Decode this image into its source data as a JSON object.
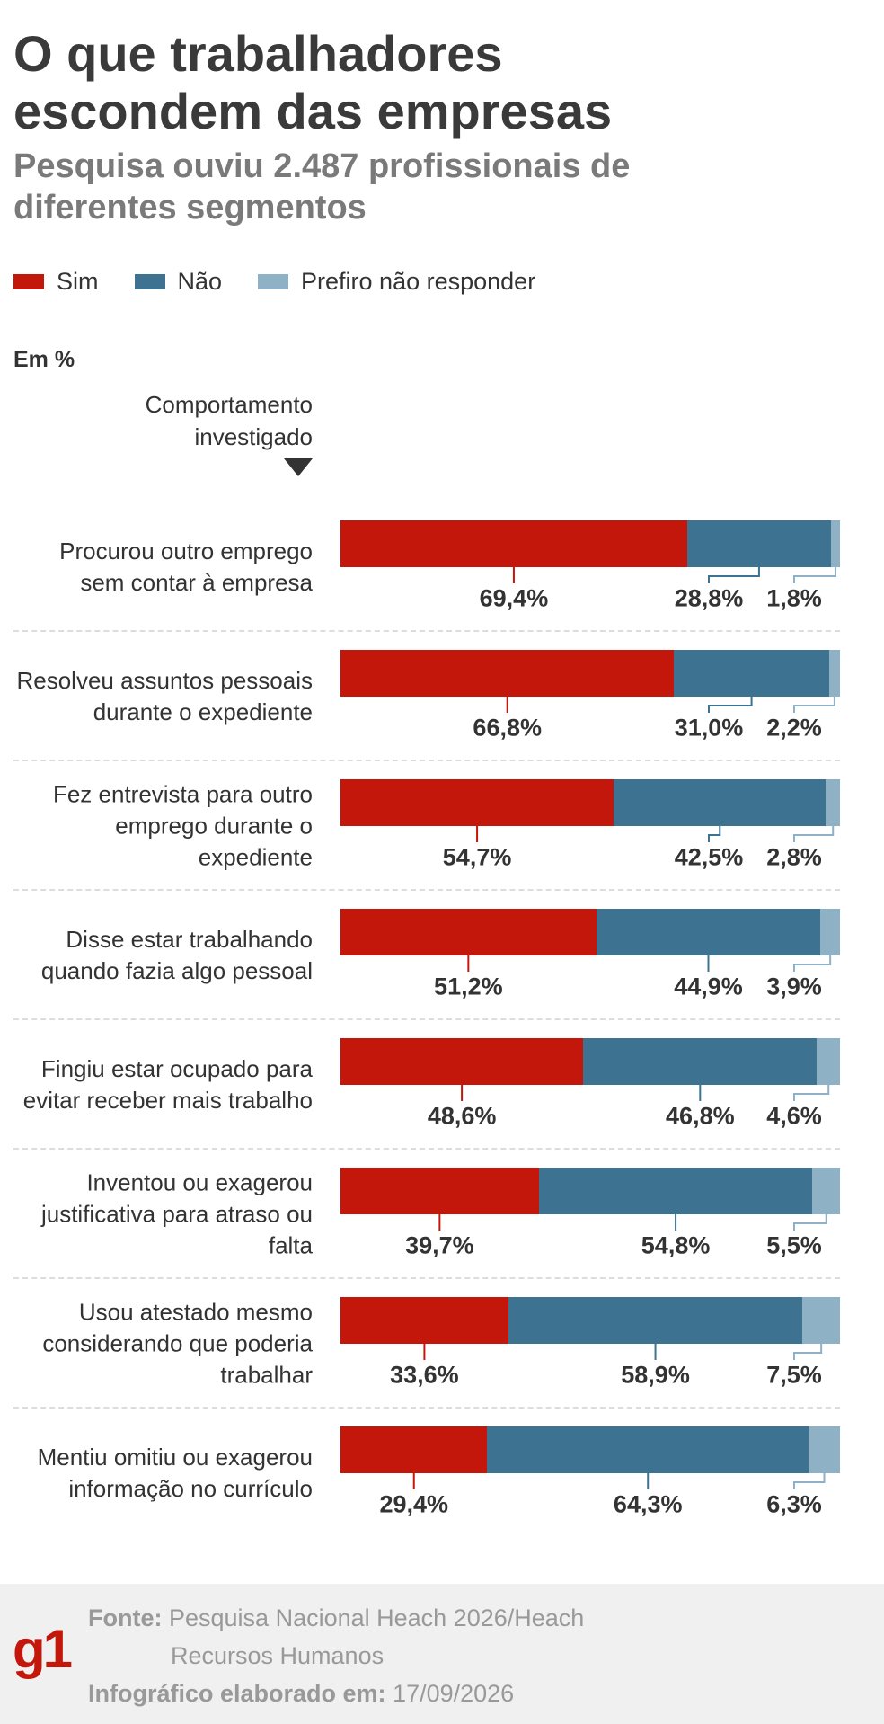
{
  "chart_data": {
    "type": "stacked_bar_horizontal",
    "title": "O que trabalhadores escondem das empresas",
    "subtitle": "Pesquisa ouviu 2.487 profissionais de diferentes segmentos",
    "unit_label": "Em %",
    "category_axis_label": "Comportamento investigado",
    "categories": [
      "Procurou outro emprego sem contar à empresa",
      "Resolveu assuntos pessoais durante o expediente",
      "Fez entrevista para outro emprego durante o expediente",
      "Disse estar trabalhando quando fazia algo pessoal",
      "Fingiu estar ocupado para evitar receber mais trabalho",
      "Inventou ou exagerou justificativa para atraso ou falta",
      "Usou atestado mesmo considerando que poderia trabalhar",
      "Mentiu omitiu ou exagerou informação no currículo"
    ],
    "xlim": [
      0,
      100
    ],
    "series": [
      {
        "name": "Sim",
        "color": "#c4170c",
        "values": [
          69.4,
          66.8,
          54.7,
          51.2,
          48.6,
          39.7,
          33.6,
          29.4
        ],
        "value_labels": [
          "69,4%",
          "66,8%",
          "54,7%",
          "51,2%",
          "48,6%",
          "39,7%",
          "33,6%",
          "29,4%"
        ]
      },
      {
        "name": "Não",
        "color": "#3d7391",
        "values": [
          28.8,
          31.0,
          42.5,
          44.9,
          46.8,
          54.8,
          58.9,
          64.3
        ],
        "value_labels": [
          "28,8%",
          "31,0%",
          "42,5%",
          "44,9%",
          "46,8%",
          "54,8%",
          "58,9%",
          "64,3%"
        ]
      },
      {
        "name": "Prefiro não responder",
        "color": "#8fb1c5",
        "values": [
          1.8,
          2.2,
          2.8,
          3.9,
          4.6,
          5.5,
          7.5,
          6.3
        ],
        "value_labels": [
          "1,8%",
          "2,2%",
          "2,8%",
          "3,9%",
          "4,6%",
          "5,5%",
          "7,5%",
          "6,3%"
        ]
      }
    ]
  },
  "footer": {
    "logo": "g1",
    "source_label": "Fonte:",
    "source": "Pesquisa Nacional Heach 2026/Heach Recursos Humanos",
    "date_label": "Infográfico elaborado em:",
    "date": "17/09/2026"
  }
}
